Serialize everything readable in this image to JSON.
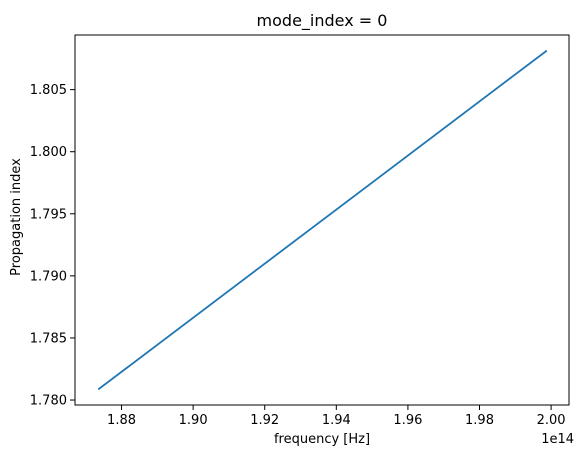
{
  "chart_data": {
    "type": "line",
    "title": "mode_index = 0",
    "xlabel": "frequency [Hz]",
    "ylabel": "Propagation index",
    "x_offset_label": "1e14",
    "xlim": [
      1.867,
      2.005
    ],
    "ylim": [
      1.7796,
      1.8094
    ],
    "x_ticks": [
      1.88,
      1.9,
      1.92,
      1.94,
      1.96,
      1.98,
      2.0
    ],
    "x_tick_labels": [
      "1.88",
      "1.90",
      "1.92",
      "1.94",
      "1.96",
      "1.98",
      "2.00"
    ],
    "y_ticks": [
      1.78,
      1.785,
      1.79,
      1.795,
      1.8,
      1.805
    ],
    "y_tick_labels": [
      "1.780",
      "1.785",
      "1.790",
      "1.795",
      "1.800",
      "1.805"
    ],
    "grid": false,
    "series": [
      {
        "color": "#1f77b4",
        "x": [
          1.8737,
          1.9986
        ],
        "y": [
          1.7809,
          1.8081
        ]
      }
    ]
  }
}
